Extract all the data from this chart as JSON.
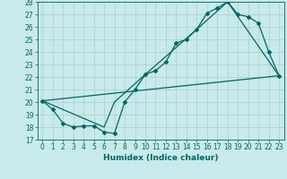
{
  "xlabel": "Humidex (Indice chaleur)",
  "bg_color": "#c8eaea",
  "grid_color": "#aacccc",
  "line_color": "#006666",
  "xlim": [
    -0.5,
    23.5
  ],
  "ylim": [
    17,
    28
  ],
  "xticks": [
    0,
    1,
    2,
    3,
    4,
    5,
    6,
    7,
    8,
    9,
    10,
    11,
    12,
    13,
    14,
    15,
    16,
    17,
    18,
    19,
    20,
    21,
    22,
    23
  ],
  "yticks": [
    17,
    18,
    19,
    20,
    21,
    22,
    23,
    24,
    25,
    26,
    27,
    28
  ],
  "line1_x": [
    0,
    1,
    2,
    3,
    4,
    5,
    6,
    7,
    8,
    9,
    10,
    11,
    12,
    13,
    14,
    15,
    16,
    17,
    18,
    19,
    20,
    21,
    22,
    23
  ],
  "line1_y": [
    20.1,
    19.4,
    18.3,
    18.0,
    18.1,
    18.1,
    17.6,
    17.5,
    20.0,
    21.0,
    22.2,
    22.5,
    23.2,
    24.7,
    25.0,
    25.8,
    27.1,
    27.5,
    28.0,
    27.0,
    26.8,
    26.3,
    24.0,
    22.1
  ],
  "line2_x": [
    0,
    23
  ],
  "line2_y": [
    20.1,
    22.1
  ],
  "line3_x": [
    0,
    6,
    7,
    10,
    15,
    18,
    23
  ],
  "line3_y": [
    20.1,
    18.0,
    20.0,
    22.2,
    25.8,
    28.0,
    22.1
  ],
  "tick_fontsize": 5.5,
  "xlabel_fontsize": 6.5
}
